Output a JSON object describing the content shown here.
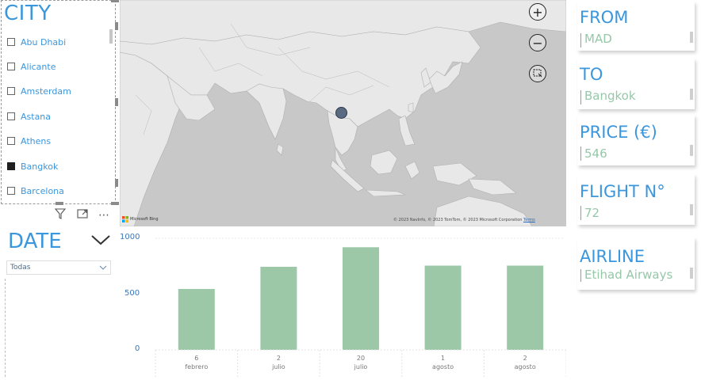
{
  "city_slicer": {
    "title": "CITY",
    "items": [
      {
        "label": "Abu Dhabi",
        "checked": false
      },
      {
        "label": "Alicante",
        "checked": false
      },
      {
        "label": "Amsterdam",
        "checked": false
      },
      {
        "label": "Astana",
        "checked": false
      },
      {
        "label": "Athens",
        "checked": false
      },
      {
        "label": "Bangkok",
        "checked": true
      },
      {
        "label": "Barcelona",
        "checked": false
      }
    ],
    "toolbar": {
      "filter_icon": "filter-icon",
      "focus_icon": "focus-mode-icon",
      "more_icon": "more-options-icon",
      "more_glyph": "⋯"
    }
  },
  "date_slicer": {
    "title": "DATE",
    "selected": "Todas"
  },
  "map": {
    "zoom_in": "+",
    "zoom_out": "−",
    "copyright": "© 2023 NavInfo, © 2023 TomTom, © 2023 Microsoft Corporation",
    "terms": "Terms",
    "bing_label": "Microsoft Bing",
    "marker_color": "#5a6a80"
  },
  "kpis": [
    {
      "label": "FROM",
      "value": "MAD"
    },
    {
      "label": "TO",
      "value": "Bangkok"
    },
    {
      "label": "PRICE (€)",
      "value": "546"
    },
    {
      "label": "FLIGHT N°",
      "value": "72"
    },
    {
      "label": "AIRLINE",
      "value": "Etihad Airways"
    }
  ],
  "chart_data": {
    "type": "bar",
    "categories": [
      {
        "day": "6",
        "month": "febrero"
      },
      {
        "day": "2",
        "month": "julio"
      },
      {
        "day": "20",
        "month": "julio"
      },
      {
        "day": "1",
        "month": "agosto"
      },
      {
        "day": "2",
        "month": "agosto"
      }
    ],
    "values": [
      546,
      745,
      920,
      755,
      755
    ],
    "yticks": [
      "0",
      "500",
      "1000"
    ],
    "ylim": [
      0,
      1000
    ],
    "bar_color": "#9cc8a8",
    "grid": false
  },
  "colors": {
    "accent": "#3a96dd",
    "value_green": "#96c8a8"
  }
}
